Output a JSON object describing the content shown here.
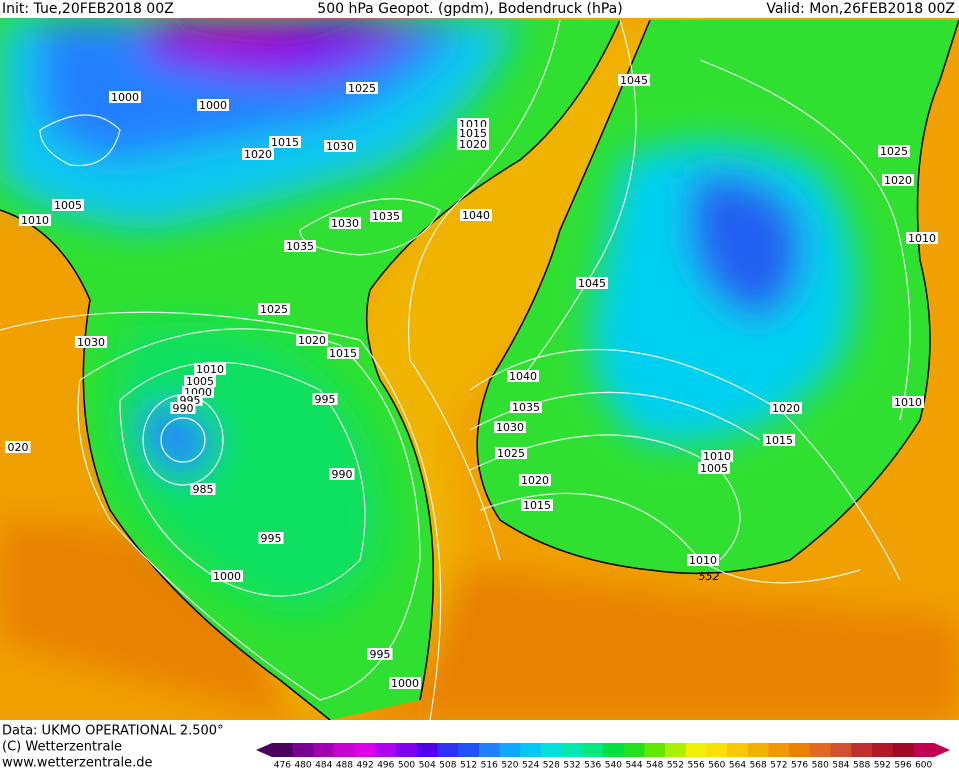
{
  "header": {
    "init": "Init: Tue,20FEB2018 00Z",
    "title": "500 hPa Geopot. (gpdm), Bodendruck (hPa)",
    "valid": "Valid: Mon,26FEB2018 00Z"
  },
  "footer": {
    "data": "Data: UKMO OPERATIONAL 2.500°",
    "copyright": "(C) Wetterzentrale",
    "url": "www.wetterzentrale.de"
  },
  "isobar_labels": [
    "1000",
    "1000",
    "1025",
    "1010",
    "1015",
    "1020",
    "1045",
    "1015",
    "1020",
    "1030",
    "1005",
    "1010",
    "1030",
    "1035",
    "1040",
    "1035",
    "1025",
    "1020",
    "1010",
    "1045",
    "1025",
    "1030",
    "1020",
    "1015",
    "1010",
    "1005",
    "1000",
    "995",
    "990",
    "995",
    "1040",
    "1035",
    "1030",
    "1025",
    "1020",
    "1015",
    "1010",
    "1010",
    "1005",
    "020",
    "990",
    "985",
    "1020",
    "1015",
    "995",
    "1000",
    "1010",
    "552",
    "995",
    "1000"
  ],
  "colorbar": {
    "ticks": [
      476,
      480,
      484,
      488,
      492,
      496,
      500,
      504,
      508,
      512,
      516,
      520,
      524,
      528,
      532,
      536,
      540,
      544,
      548,
      552,
      556,
      560,
      564,
      568,
      572,
      576,
      580,
      584,
      588,
      592,
      596,
      600
    ],
    "colors": [
      "#4b0060",
      "#7a0090",
      "#a000b0",
      "#c800d0",
      "#e000e8",
      "#b000f0",
      "#8000f0",
      "#5000e8",
      "#3030f0",
      "#2050f8",
      "#2080ff",
      "#10a8ff",
      "#00c8f0",
      "#00e0e0",
      "#00e8b0",
      "#00e880",
      "#00e040",
      "#20e020",
      "#60e800",
      "#a8f000",
      "#f0f000",
      "#f8e000",
      "#f8c800",
      "#f0b000",
      "#f09800",
      "#e88000",
      "#e06820",
      "#d05030",
      "#c03030",
      "#b01828",
      "#a00828",
      "#c00050"
    ]
  }
}
